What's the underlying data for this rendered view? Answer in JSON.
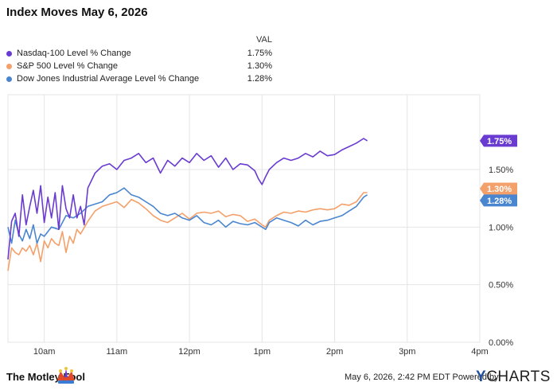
{
  "header": {
    "title": "Index Moves May 6, 2026"
  },
  "legend": {
    "value_header": "VAL",
    "items": [
      {
        "name": "Nasdaq-100 Level % Change",
        "value": "1.75%",
        "color": "#6a3bd1"
      },
      {
        "name": "S&P 500 Level % Change",
        "value": "1.30%",
        "color": "#f3a06a"
      },
      {
        "name": "Dow Jones Industrial Average Level % Change",
        "value": "1.28%",
        "color": "#4a86cf"
      }
    ]
  },
  "footer": {
    "timestamp": "May 6, 2026, 2:42 PM EDT Powered by",
    "brand_left": "The Motley Fool",
    "brand_right": "YCHARTS"
  },
  "chart_data": {
    "type": "line",
    "x_unit": "time of day (hours)",
    "xlim": [
      9.5,
      16.0
    ],
    "xticks": [
      {
        "x": 10,
        "label": "10am"
      },
      {
        "x": 11,
        "label": "11am"
      },
      {
        "x": 12,
        "label": "12pm"
      },
      {
        "x": 13,
        "label": "1pm"
      },
      {
        "x": 14,
        "label": "2pm"
      },
      {
        "x": 15,
        "label": "3pm"
      },
      {
        "x": 16,
        "label": "4pm"
      }
    ],
    "ylim": [
      0,
      2.15
    ],
    "yticks": [
      {
        "y": 0.0,
        "label": "0.00%"
      },
      {
        "y": 0.5,
        "label": "0.50%"
      },
      {
        "y": 1.0,
        "label": "1.00%"
      },
      {
        "y": 1.5,
        "label": "1.50%"
      }
    ],
    "grid": true,
    "legend_position": "top-left",
    "series": [
      {
        "name": "Nasdaq-100 Level % Change",
        "color": "#6a3bd1",
        "end_label": "1.75%",
        "x": [
          9.5,
          9.55,
          9.6,
          9.65,
          9.7,
          9.75,
          9.8,
          9.85,
          9.9,
          9.95,
          10.0,
          10.05,
          10.1,
          10.15,
          10.2,
          10.25,
          10.3,
          10.35,
          10.4,
          10.45,
          10.5,
          10.55,
          10.6,
          10.7,
          10.8,
          10.9,
          11.0,
          11.1,
          11.2,
          11.3,
          11.4,
          11.5,
          11.6,
          11.7,
          11.8,
          11.9,
          12.0,
          12.1,
          12.2,
          12.3,
          12.4,
          12.5,
          12.6,
          12.7,
          12.8,
          12.9,
          12.95,
          13.0,
          13.05,
          13.1,
          13.2,
          13.3,
          13.4,
          13.5,
          13.6,
          13.7,
          13.8,
          13.9,
          14.0,
          14.1,
          14.2,
          14.3,
          14.4,
          14.45
        ],
        "values": [
          0.72,
          1.05,
          1.12,
          0.92,
          1.28,
          1.02,
          1.18,
          1.32,
          1.12,
          1.36,
          1.04,
          1.26,
          1.08,
          1.3,
          0.98,
          1.36,
          1.16,
          1.08,
          1.28,
          1.08,
          1.18,
          1.02,
          1.34,
          1.47,
          1.53,
          1.55,
          1.5,
          1.58,
          1.6,
          1.64,
          1.56,
          1.6,
          1.47,
          1.58,
          1.53,
          1.6,
          1.56,
          1.64,
          1.58,
          1.62,
          1.52,
          1.6,
          1.5,
          1.55,
          1.54,
          1.49,
          1.42,
          1.37,
          1.44,
          1.5,
          1.56,
          1.6,
          1.58,
          1.6,
          1.64,
          1.61,
          1.66,
          1.62,
          1.63,
          1.67,
          1.7,
          1.73,
          1.77,
          1.75
        ]
      },
      {
        "name": "S&P 500 Level % Change",
        "color": "#f3a06a",
        "end_label": "1.30%",
        "x": [
          9.5,
          9.55,
          9.6,
          9.65,
          9.7,
          9.75,
          9.8,
          9.85,
          9.9,
          9.95,
          10.0,
          10.05,
          10.1,
          10.15,
          10.2,
          10.25,
          10.3,
          10.35,
          10.4,
          10.45,
          10.5,
          10.6,
          10.7,
          10.8,
          10.9,
          11.0,
          11.1,
          11.2,
          11.3,
          11.4,
          11.5,
          11.6,
          11.7,
          11.8,
          11.9,
          12.0,
          12.1,
          12.2,
          12.3,
          12.4,
          12.5,
          12.6,
          12.7,
          12.8,
          12.9,
          13.0,
          13.05,
          13.1,
          13.2,
          13.3,
          13.4,
          13.5,
          13.6,
          13.7,
          13.8,
          13.9,
          14.0,
          14.1,
          14.2,
          14.3,
          14.4,
          14.45
        ],
        "values": [
          0.62,
          0.82,
          0.78,
          0.76,
          0.82,
          0.79,
          0.84,
          0.76,
          0.86,
          0.7,
          0.88,
          0.82,
          0.9,
          0.86,
          0.84,
          0.96,
          0.78,
          0.92,
          0.86,
          0.98,
          0.94,
          1.05,
          1.14,
          1.18,
          1.2,
          1.22,
          1.17,
          1.24,
          1.21,
          1.16,
          1.1,
          1.06,
          1.04,
          1.08,
          1.12,
          1.07,
          1.12,
          1.13,
          1.12,
          1.14,
          1.09,
          1.11,
          1.1,
          1.05,
          1.07,
          1.02,
          1.0,
          1.06,
          1.1,
          1.13,
          1.12,
          1.14,
          1.13,
          1.15,
          1.16,
          1.15,
          1.16,
          1.2,
          1.19,
          1.22,
          1.3,
          1.3
        ]
      },
      {
        "name": "Dow Jones Industrial Average Level % Change",
        "color": "#4a86cf",
        "end_label": "1.28%",
        "x": [
          9.5,
          9.55,
          9.6,
          9.65,
          9.7,
          9.75,
          9.8,
          9.85,
          9.9,
          9.95,
          10.0,
          10.1,
          10.2,
          10.3,
          10.4,
          10.5,
          10.6,
          10.7,
          10.8,
          10.9,
          11.0,
          11.1,
          11.2,
          11.3,
          11.4,
          11.5,
          11.6,
          11.7,
          11.8,
          11.9,
          12.0,
          12.1,
          12.2,
          12.3,
          12.4,
          12.5,
          12.6,
          12.7,
          12.8,
          12.9,
          13.0,
          13.05,
          13.1,
          13.2,
          13.3,
          13.4,
          13.5,
          13.6,
          13.7,
          13.8,
          13.9,
          14.0,
          14.1,
          14.2,
          14.3,
          14.4,
          14.45
        ],
        "values": [
          1.0,
          0.86,
          1.06,
          0.94,
          0.88,
          0.98,
          0.9,
          1.02,
          0.86,
          0.94,
          0.92,
          1.0,
          0.98,
          1.1,
          1.08,
          1.12,
          1.18,
          1.2,
          1.22,
          1.28,
          1.3,
          1.34,
          1.28,
          1.26,
          1.22,
          1.18,
          1.12,
          1.1,
          1.12,
          1.08,
          1.06,
          1.1,
          1.04,
          1.02,
          1.06,
          1.0,
          1.05,
          1.03,
          1.02,
          1.04,
          1.0,
          0.98,
          1.04,
          1.08,
          1.06,
          1.04,
          1.01,
          1.06,
          1.02,
          1.05,
          1.06,
          1.08,
          1.1,
          1.14,
          1.18,
          1.26,
          1.28
        ]
      }
    ]
  }
}
